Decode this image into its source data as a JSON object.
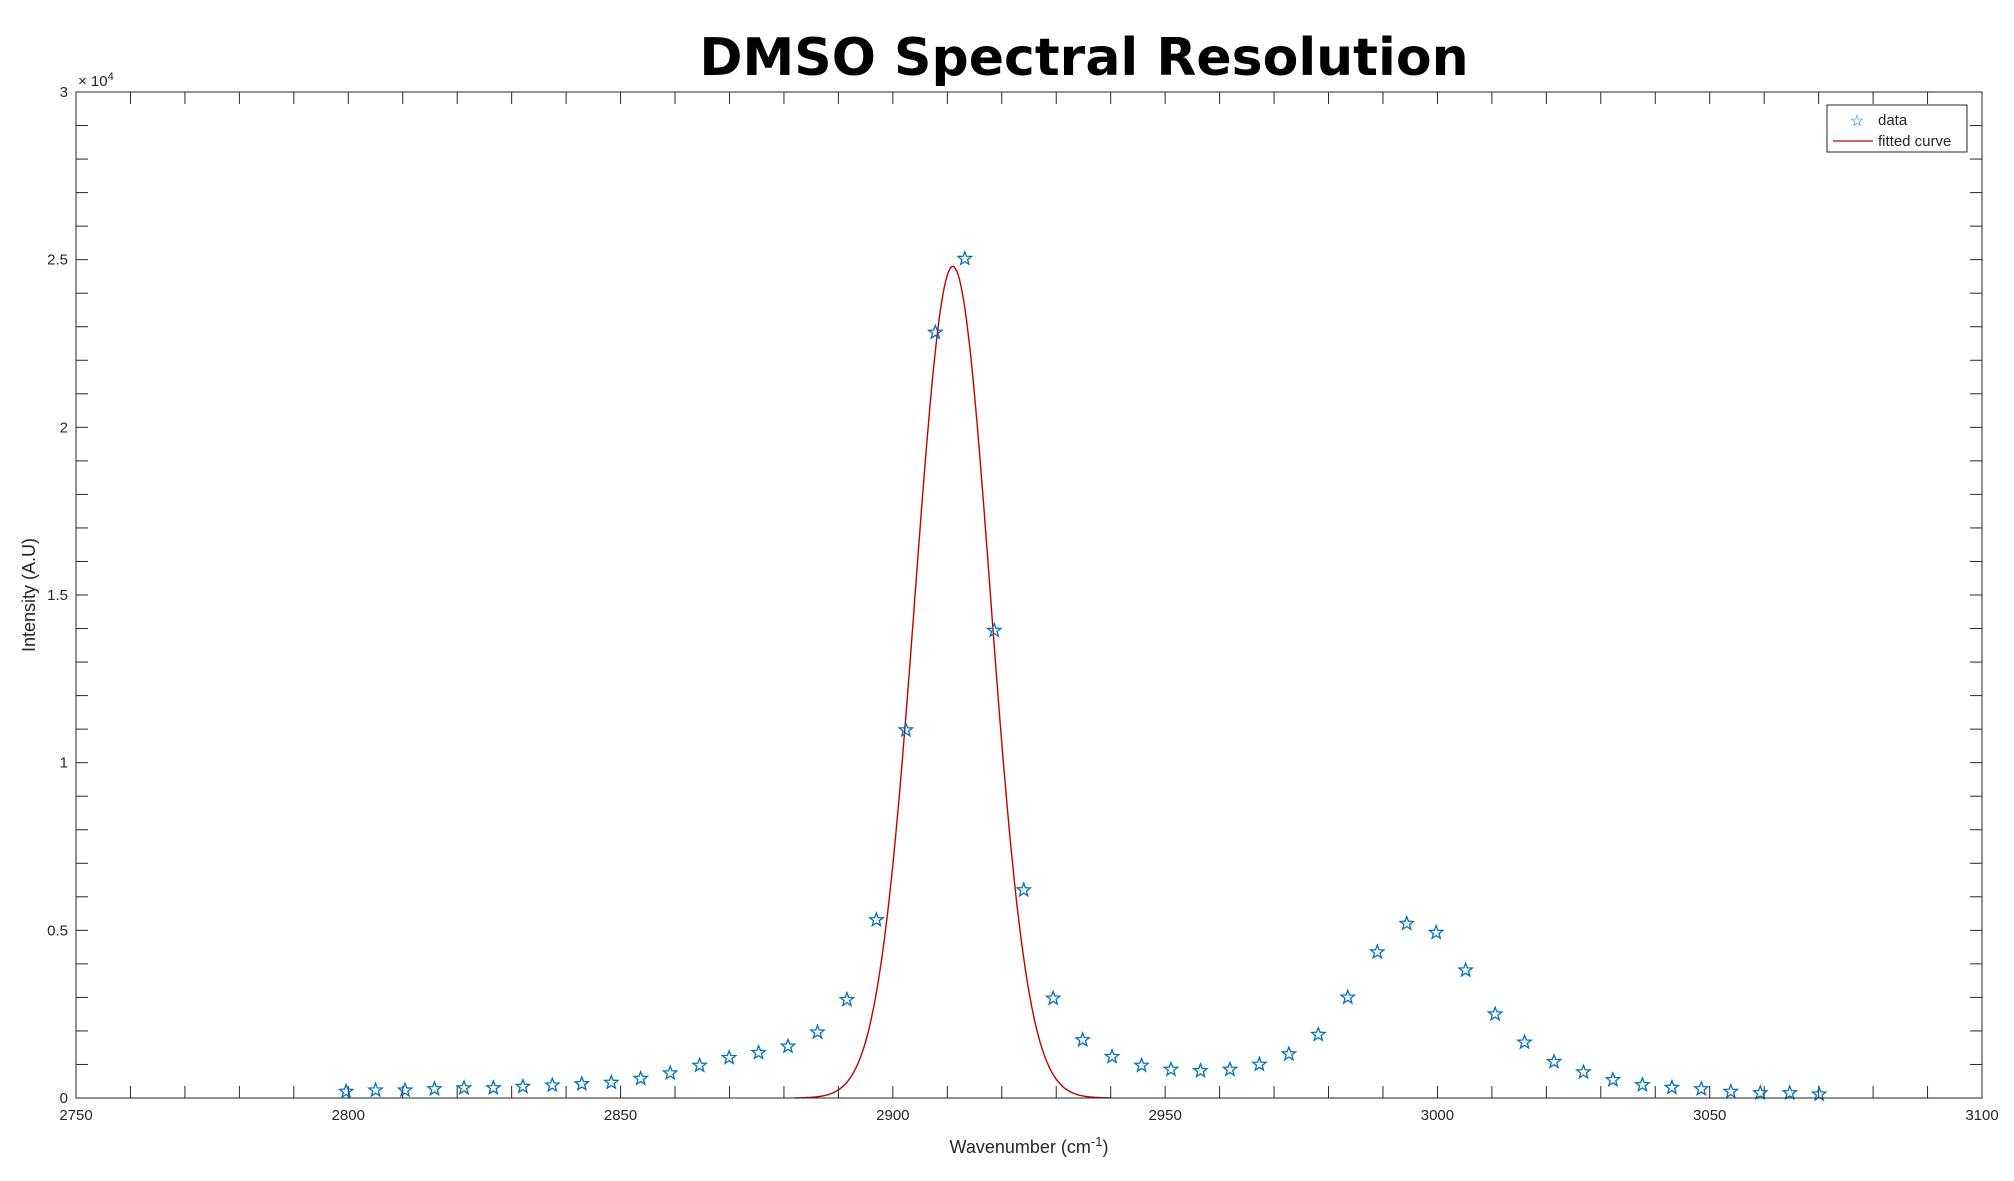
{
  "chart_data": {
    "type": "scatter",
    "title": "DMSO Spectral Resolution",
    "xlabel": "Wavenumber (cm",
    "xlabel_sup": "-1",
    "xlabel_end": ")",
    "ylabel": "Intensity (A.U)",
    "y_exponent_label": "× 10",
    "y_exponent_sup": "4",
    "xlim": [
      2750,
      3100
    ],
    "ylim": [
      0,
      30000
    ],
    "xticks": [
      2750,
      2800,
      2850,
      2900,
      2950,
      3000,
      3050,
      3100
    ],
    "xtick_labels": [
      "2750",
      "2800",
      "2850",
      "2900",
      "2950",
      "3000",
      "3050",
      "3100"
    ],
    "yticks": [
      0,
      5000,
      10000,
      15000,
      20000,
      25000,
      30000
    ],
    "ytick_labels": [
      "0",
      "0.5",
      "1",
      "1.5",
      "2",
      "2.5",
      "3"
    ],
    "grid": false,
    "legend_position": "top-right",
    "legend": [
      "data",
      "fitted curve"
    ],
    "colors": {
      "data": "#0072BD",
      "fitted curve": "#C00000"
    },
    "series": [
      {
        "name": "data",
        "marker": "star",
        "x_start": 2799.6,
        "x_step": 5.41,
        "y": [
          193,
          231,
          231,
          270,
          300,
          300,
          340,
          380,
          420,
          460,
          580,
          740,
          970,
          1200,
          1350,
          1540,
          1960,
          2930,
          5310,
          10970,
          22830,
          25030,
          13940,
          6200,
          2970,
          1730,
          1230,
          970,
          850,
          810,
          850,
          1000,
          1310,
          1890,
          3000,
          4350,
          5200,
          4930,
          3810,
          2500,
          1660,
          1080,
          770,
          540,
          390,
          310,
          270,
          190,
          150,
          150,
          110
        ]
      },
      {
        "name": "fitted curve",
        "model": "gaussian",
        "amplitude": 24800,
        "center": 2911,
        "sigma": 6.9
      }
    ]
  }
}
